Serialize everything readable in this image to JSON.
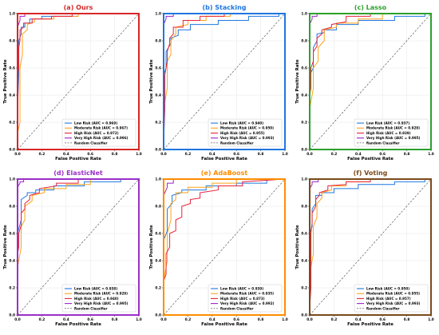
{
  "colors": {
    "low": "#1f77e0",
    "moderate": "#ffa31a",
    "high": "#e8233a",
    "very_high": "#a020c8",
    "random": "#444444",
    "grid": "#e6e6e6"
  },
  "chart_data": [
    {
      "type": "line",
      "title": "(a) Ours",
      "title_color": "#d62728",
      "border_color": "#d62728",
      "xlabel": "False Positive Rate",
      "ylabel": "True Positive Rate",
      "xlim": [
        0,
        1
      ],
      "ylim": [
        0,
        1
      ],
      "xticks": [
        "0.0",
        "0.2",
        "0.4",
        "0.6",
        "0.8",
        "1.0"
      ],
      "yticks": [
        "0.0",
        "0.2",
        "0.4",
        "0.6",
        "0.8",
        "1.0"
      ],
      "grid": true,
      "legend_position": "bottom-right",
      "series": [
        {
          "name": "Low Risk (AUC = 0.969)",
          "x": [
            0,
            0,
            0.01,
            0.01,
            0.03,
            0.03,
            0.06,
            0.06,
            0.1,
            0.1,
            0.2,
            0.2,
            0.5,
            0.5,
            1
          ],
          "y": [
            0,
            0.3,
            0.55,
            0.8,
            0.85,
            0.9,
            0.9,
            0.93,
            0.93,
            0.96,
            0.96,
            0.98,
            0.98,
            1,
            1
          ]
        },
        {
          "name": "Moderate Risk (AUC = 0.967)",
          "x": [
            0,
            0,
            0.02,
            0.02,
            0.04,
            0.04,
            0.08,
            0.08,
            0.14,
            0.14,
            0.3,
            0.3,
            0.5,
            0.5,
            1
          ],
          "y": [
            0,
            0.12,
            0.2,
            0.6,
            0.7,
            0.85,
            0.88,
            0.92,
            0.94,
            0.96,
            0.96,
            0.98,
            0.98,
            1,
            1
          ]
        },
        {
          "name": "High Risk (AUC = 0.972)",
          "x": [
            0,
            0,
            0.01,
            0.01,
            0.02,
            0.02,
            0.05,
            0.05,
            0.12,
            0.12,
            0.28,
            0.28,
            0.45,
            0.45,
            1
          ],
          "y": [
            0,
            0.55,
            0.6,
            0.75,
            0.8,
            0.88,
            0.9,
            0.93,
            0.93,
            0.96,
            0.96,
            0.98,
            0.98,
            1,
            1
          ]
        },
        {
          "name": "Very High Risk (AUC = 0.996)",
          "x": [
            0,
            0,
            0.02,
            0.02,
            0.06,
            0.06,
            1
          ],
          "y": [
            0,
            0.9,
            0.95,
            0.98,
            0.98,
            1,
            1
          ]
        },
        {
          "name": "Random Classifier",
          "x": [
            0,
            1
          ],
          "y": [
            0,
            1
          ]
        }
      ]
    },
    {
      "type": "line",
      "title": "(b) Stacking",
      "title_color": "#1f77e0",
      "border_color": "#1f77e0",
      "xlabel": "False Positive Rate",
      "ylabel": "True Positive Rate",
      "xlim": [
        0,
        1
      ],
      "ylim": [
        0,
        1
      ],
      "xticks": [
        "0.0",
        "0.2",
        "0.4",
        "0.6",
        "0.8",
        "1.0"
      ],
      "yticks": [
        "0.0",
        "0.2",
        "0.4",
        "0.6",
        "0.8",
        "1.0"
      ],
      "grid": true,
      "legend_position": "bottom-right",
      "series": [
        {
          "name": "Low Risk (AUC = 0.940)",
          "x": [
            0,
            0,
            0.02,
            0.02,
            0.06,
            0.06,
            0.12,
            0.12,
            0.22,
            0.22,
            0.45,
            0.45,
            0.7,
            0.7,
            0.95,
            0.95,
            1
          ],
          "y": [
            0,
            0.55,
            0.6,
            0.72,
            0.78,
            0.82,
            0.84,
            0.88,
            0.88,
            0.92,
            0.92,
            0.95,
            0.95,
            0.98,
            0.98,
            1,
            1
          ]
        },
        {
          "name": "Moderate Risk (AUC = 0.950)",
          "x": [
            0,
            0,
            0.03,
            0.03,
            0.06,
            0.06,
            0.1,
            0.1,
            0.2,
            0.2,
            0.35,
            0.35,
            0.55,
            0.55,
            1
          ],
          "y": [
            0,
            0.3,
            0.45,
            0.65,
            0.7,
            0.8,
            0.85,
            0.9,
            0.92,
            0.95,
            0.95,
            0.98,
            0.98,
            1,
            1
          ]
        },
        {
          "name": "High Risk (AUC = 0.955)",
          "x": [
            0,
            0,
            0.01,
            0.01,
            0.03,
            0.03,
            0.05,
            0.05,
            0.08,
            0.08,
            0.16,
            0.16,
            0.3,
            0.3,
            0.5,
            0.5,
            1
          ],
          "y": [
            0,
            0.05,
            0.3,
            0.55,
            0.65,
            0.72,
            0.78,
            0.82,
            0.85,
            0.9,
            0.9,
            0.95,
            0.95,
            0.98,
            0.98,
            1,
            1
          ]
        },
        {
          "name": "Very High Risk (AUC = 0.993)",
          "x": [
            0,
            0,
            0.02,
            0.02,
            0.08,
            0.08,
            1
          ],
          "y": [
            0,
            0.92,
            0.96,
            0.98,
            0.98,
            1,
            1
          ]
        },
        {
          "name": "Random Classifier",
          "x": [
            0,
            1
          ],
          "y": [
            0,
            1
          ]
        }
      ]
    },
    {
      "type": "line",
      "title": "(c) Lasso",
      "title_color": "#2ca02c",
      "border_color": "#2ca02c",
      "xlabel": "False Positive Rate",
      "ylabel": "True Positive Rate",
      "xlim": [
        0,
        1
      ],
      "ylim": [
        0,
        1
      ],
      "xticks": [
        "0.0",
        "0.2",
        "0.4",
        "0.6",
        "0.8",
        "1.0"
      ],
      "yticks": [
        "0.0",
        "0.2",
        "0.4",
        "0.6",
        "0.8",
        "1.0"
      ],
      "grid": true,
      "legend_position": "bottom-right",
      "series": [
        {
          "name": "Low Risk (AUC = 0.937)",
          "x": [
            0,
            0,
            0.03,
            0.03,
            0.06,
            0.06,
            0.12,
            0.12,
            0.22,
            0.22,
            0.4,
            0.4,
            0.7,
            0.7,
            0.95,
            0.95,
            1
          ],
          "y": [
            0,
            0.55,
            0.6,
            0.75,
            0.8,
            0.85,
            0.86,
            0.88,
            0.88,
            0.92,
            0.92,
            0.95,
            0.95,
            0.98,
            0.98,
            1,
            1
          ]
        },
        {
          "name": "Moderate Risk (AUC = 0.928)",
          "x": [
            0,
            0,
            0.03,
            0.03,
            0.07,
            0.07,
            0.12,
            0.12,
            0.22,
            0.22,
            0.4,
            0.4,
            0.6,
            0.6,
            1
          ],
          "y": [
            0,
            0.3,
            0.45,
            0.6,
            0.65,
            0.75,
            0.8,
            0.88,
            0.9,
            0.93,
            0.93,
            0.96,
            0.96,
            1,
            1
          ]
        },
        {
          "name": "High Risk (AUC = 0.939)",
          "x": [
            0,
            0,
            0.01,
            0.01,
            0.03,
            0.03,
            0.06,
            0.06,
            0.1,
            0.1,
            0.18,
            0.18,
            0.3,
            0.3,
            0.5,
            0.5,
            1
          ],
          "y": [
            0,
            0.4,
            0.45,
            0.6,
            0.65,
            0.72,
            0.76,
            0.82,
            0.85,
            0.88,
            0.9,
            0.92,
            0.94,
            0.98,
            0.98,
            1,
            1
          ]
        },
        {
          "name": "Very High Risk (AUC = 0.995)",
          "x": [
            0,
            0,
            0.02,
            0.02,
            0.06,
            0.06,
            1
          ],
          "y": [
            0,
            0.92,
            0.96,
            0.98,
            0.98,
            1,
            1
          ]
        },
        {
          "name": "Random Classifier",
          "x": [
            0,
            1
          ],
          "y": [
            0,
            1
          ]
        }
      ]
    },
    {
      "type": "line",
      "title": "(d) ElasticNet",
      "title_color": "#9b30c8",
      "border_color": "#9b30c8",
      "xlabel": "False Positive Rate",
      "ylabel": "True Positive Rate",
      "xlim": [
        0,
        1
      ],
      "ylim": [
        0,
        1
      ],
      "xticks": [
        "0.0",
        "0.2",
        "0.4",
        "0.6",
        "0.8",
        "1.0"
      ],
      "yticks": [
        "0.0",
        "0.2",
        "0.4",
        "0.6",
        "0.8",
        "1.0"
      ],
      "grid": true,
      "legend_position": "bottom-right",
      "series": [
        {
          "name": "Low Risk (AUC = 0.938)",
          "x": [
            0,
            0,
            0.03,
            0.03,
            0.08,
            0.08,
            0.15,
            0.15,
            0.3,
            0.3,
            0.55,
            0.55,
            0.85,
            0.85,
            1
          ],
          "y": [
            0,
            0.6,
            0.7,
            0.85,
            0.88,
            0.9,
            0.9,
            0.92,
            0.92,
            0.95,
            0.95,
            0.98,
            0.98,
            1,
            1
          ]
        },
        {
          "name": "Moderate Risk (AUC = 0.929)",
          "x": [
            0,
            0,
            0.03,
            0.03,
            0.06,
            0.06,
            0.12,
            0.12,
            0.22,
            0.22,
            0.4,
            0.4,
            0.6,
            0.6,
            1
          ],
          "y": [
            0,
            0.35,
            0.5,
            0.65,
            0.7,
            0.8,
            0.84,
            0.88,
            0.9,
            0.93,
            0.93,
            0.96,
            0.96,
            1,
            1
          ]
        },
        {
          "name": "High Risk (AUC = 0.940)",
          "x": [
            0,
            0,
            0.01,
            0.01,
            0.03,
            0.03,
            0.06,
            0.06,
            0.1,
            0.1,
            0.18,
            0.18,
            0.32,
            0.32,
            0.5,
            0.5,
            1
          ],
          "y": [
            0,
            0.45,
            0.5,
            0.6,
            0.66,
            0.75,
            0.78,
            0.82,
            0.85,
            0.88,
            0.9,
            0.93,
            0.95,
            0.97,
            0.97,
            1,
            1
          ]
        },
        {
          "name": "Very High Risk (AUC = 0.995)",
          "x": [
            0,
            0,
            0.02,
            0.02,
            0.05,
            0.05,
            1
          ],
          "y": [
            0,
            0.94,
            0.97,
            0.98,
            0.98,
            1,
            1
          ]
        },
        {
          "name": "Random Classifier",
          "x": [
            0,
            1
          ],
          "y": [
            0,
            1
          ]
        }
      ]
    },
    {
      "type": "line",
      "title": "(e) AdaBoost",
      "title_color": "#ff8c00",
      "border_color": "#ff8c00",
      "xlabel": "False Positive Rate",
      "ylabel": "True Positive Rate",
      "xlim": [
        0,
        1
      ],
      "ylim": [
        0,
        1
      ],
      "xticks": [
        "0.0",
        "0.2",
        "0.4",
        "0.6",
        "0.8",
        "1.0"
      ],
      "yticks": [
        "0.0",
        "0.2",
        "0.4",
        "0.6",
        "0.8",
        "1.0"
      ],
      "grid": true,
      "legend_position": "bottom-right",
      "series": [
        {
          "name": "Low Risk (AUC = 0.939)",
          "x": [
            0,
            0,
            0.03,
            0.03,
            0.07,
            0.07,
            0.15,
            0.15,
            0.35,
            0.35,
            0.6,
            0.6,
            0.85,
            0.85,
            1
          ],
          "y": [
            0,
            0.55,
            0.62,
            0.78,
            0.82,
            0.88,
            0.9,
            0.92,
            0.92,
            0.95,
            0.95,
            0.97,
            0.97,
            1,
            1
          ]
        },
        {
          "name": "Moderate Risk (AUC = 0.935)",
          "x": [
            0,
            0,
            0.03,
            0.03,
            0.06,
            0.06,
            0.1,
            0.1,
            0.2,
            0.2,
            0.4,
            0.4,
            0.6,
            0.6,
            1
          ],
          "y": [
            0,
            0.25,
            0.4,
            0.6,
            0.7,
            0.82,
            0.85,
            0.9,
            0.9,
            0.94,
            0.94,
            0.97,
            0.97,
            1,
            1
          ]
        },
        {
          "name": "High Risk (AUC = 0.873)",
          "x": [
            0,
            0,
            0.02,
            0.02,
            0.05,
            0.05,
            0.1,
            0.1,
            0.15,
            0.15,
            0.22,
            0.22,
            0.3,
            0.3,
            0.45,
            0.45,
            0.65,
            0.65,
            1
          ],
          "y": [
            0,
            0.25,
            0.3,
            0.45,
            0.5,
            0.6,
            0.62,
            0.7,
            0.72,
            0.8,
            0.82,
            0.85,
            0.86,
            0.9,
            0.92,
            0.95,
            0.95,
            0.98,
            1
          ]
        },
        {
          "name": "Very High Risk (AUC = 0.992)",
          "x": [
            0,
            0,
            0.03,
            0.03,
            0.08,
            0.08,
            1
          ],
          "y": [
            0,
            0.88,
            0.94,
            0.97,
            0.97,
            1,
            1
          ]
        },
        {
          "name": "Random Classifier",
          "x": [
            0,
            1
          ],
          "y": [
            0,
            1
          ]
        }
      ]
    },
    {
      "type": "line",
      "title": "(f) Voting",
      "title_color": "#7a4a1a",
      "border_color": "#7a4a1a",
      "xlabel": "False Positive Rate",
      "ylabel": "True Positive Rate",
      "xlim": [
        0,
        1
      ],
      "ylim": [
        0,
        1
      ],
      "xticks": [
        "0.0",
        "0.2",
        "0.4",
        "0.6",
        "0.8",
        "1.0"
      ],
      "yticks": [
        "0.0",
        "0.2",
        "0.4",
        "0.6",
        "0.8",
        "1.0"
      ],
      "grid": true,
      "legend_position": "bottom-right",
      "series": [
        {
          "name": "Low Risk (AUC = 0.950)",
          "x": [
            0,
            0,
            0.02,
            0.02,
            0.05,
            0.05,
            0.1,
            0.1,
            0.2,
            0.2,
            0.4,
            0.4,
            0.7,
            0.7,
            0.95,
            0.95,
            1
          ],
          "y": [
            0,
            0.6,
            0.65,
            0.78,
            0.82,
            0.88,
            0.88,
            0.9,
            0.9,
            0.93,
            0.93,
            0.96,
            0.96,
            0.98,
            0.98,
            1,
            1
          ]
        },
        {
          "name": "Moderate Risk (AUC = 0.955)",
          "x": [
            0,
            0,
            0.03,
            0.03,
            0.06,
            0.06,
            0.1,
            0.1,
            0.18,
            0.18,
            0.3,
            0.3,
            0.5,
            0.5,
            1
          ],
          "y": [
            0,
            0.3,
            0.45,
            0.65,
            0.72,
            0.82,
            0.86,
            0.9,
            0.92,
            0.95,
            0.95,
            0.98,
            0.98,
            1,
            1
          ]
        },
        {
          "name": "High Risk (AUC = 0.957)",
          "x": [
            0,
            0,
            0.01,
            0.01,
            0.02,
            0.02,
            0.05,
            0.05,
            0.08,
            0.08,
            0.15,
            0.15,
            0.3,
            0.3,
            0.5,
            0.5,
            1
          ],
          "y": [
            0,
            0.05,
            0.2,
            0.6,
            0.68,
            0.75,
            0.8,
            0.85,
            0.88,
            0.9,
            0.92,
            0.95,
            0.96,
            0.98,
            0.98,
            1,
            1
          ]
        },
        {
          "name": "Very High Risk (AUC = 0.993)",
          "x": [
            0,
            0,
            0.02,
            0.02,
            0.07,
            0.07,
            1
          ],
          "y": [
            0,
            0.93,
            0.96,
            0.98,
            0.98,
            1,
            1
          ]
        },
        {
          "name": "Random Classifier",
          "x": [
            0,
            1
          ],
          "y": [
            0,
            1
          ]
        }
      ]
    }
  ]
}
